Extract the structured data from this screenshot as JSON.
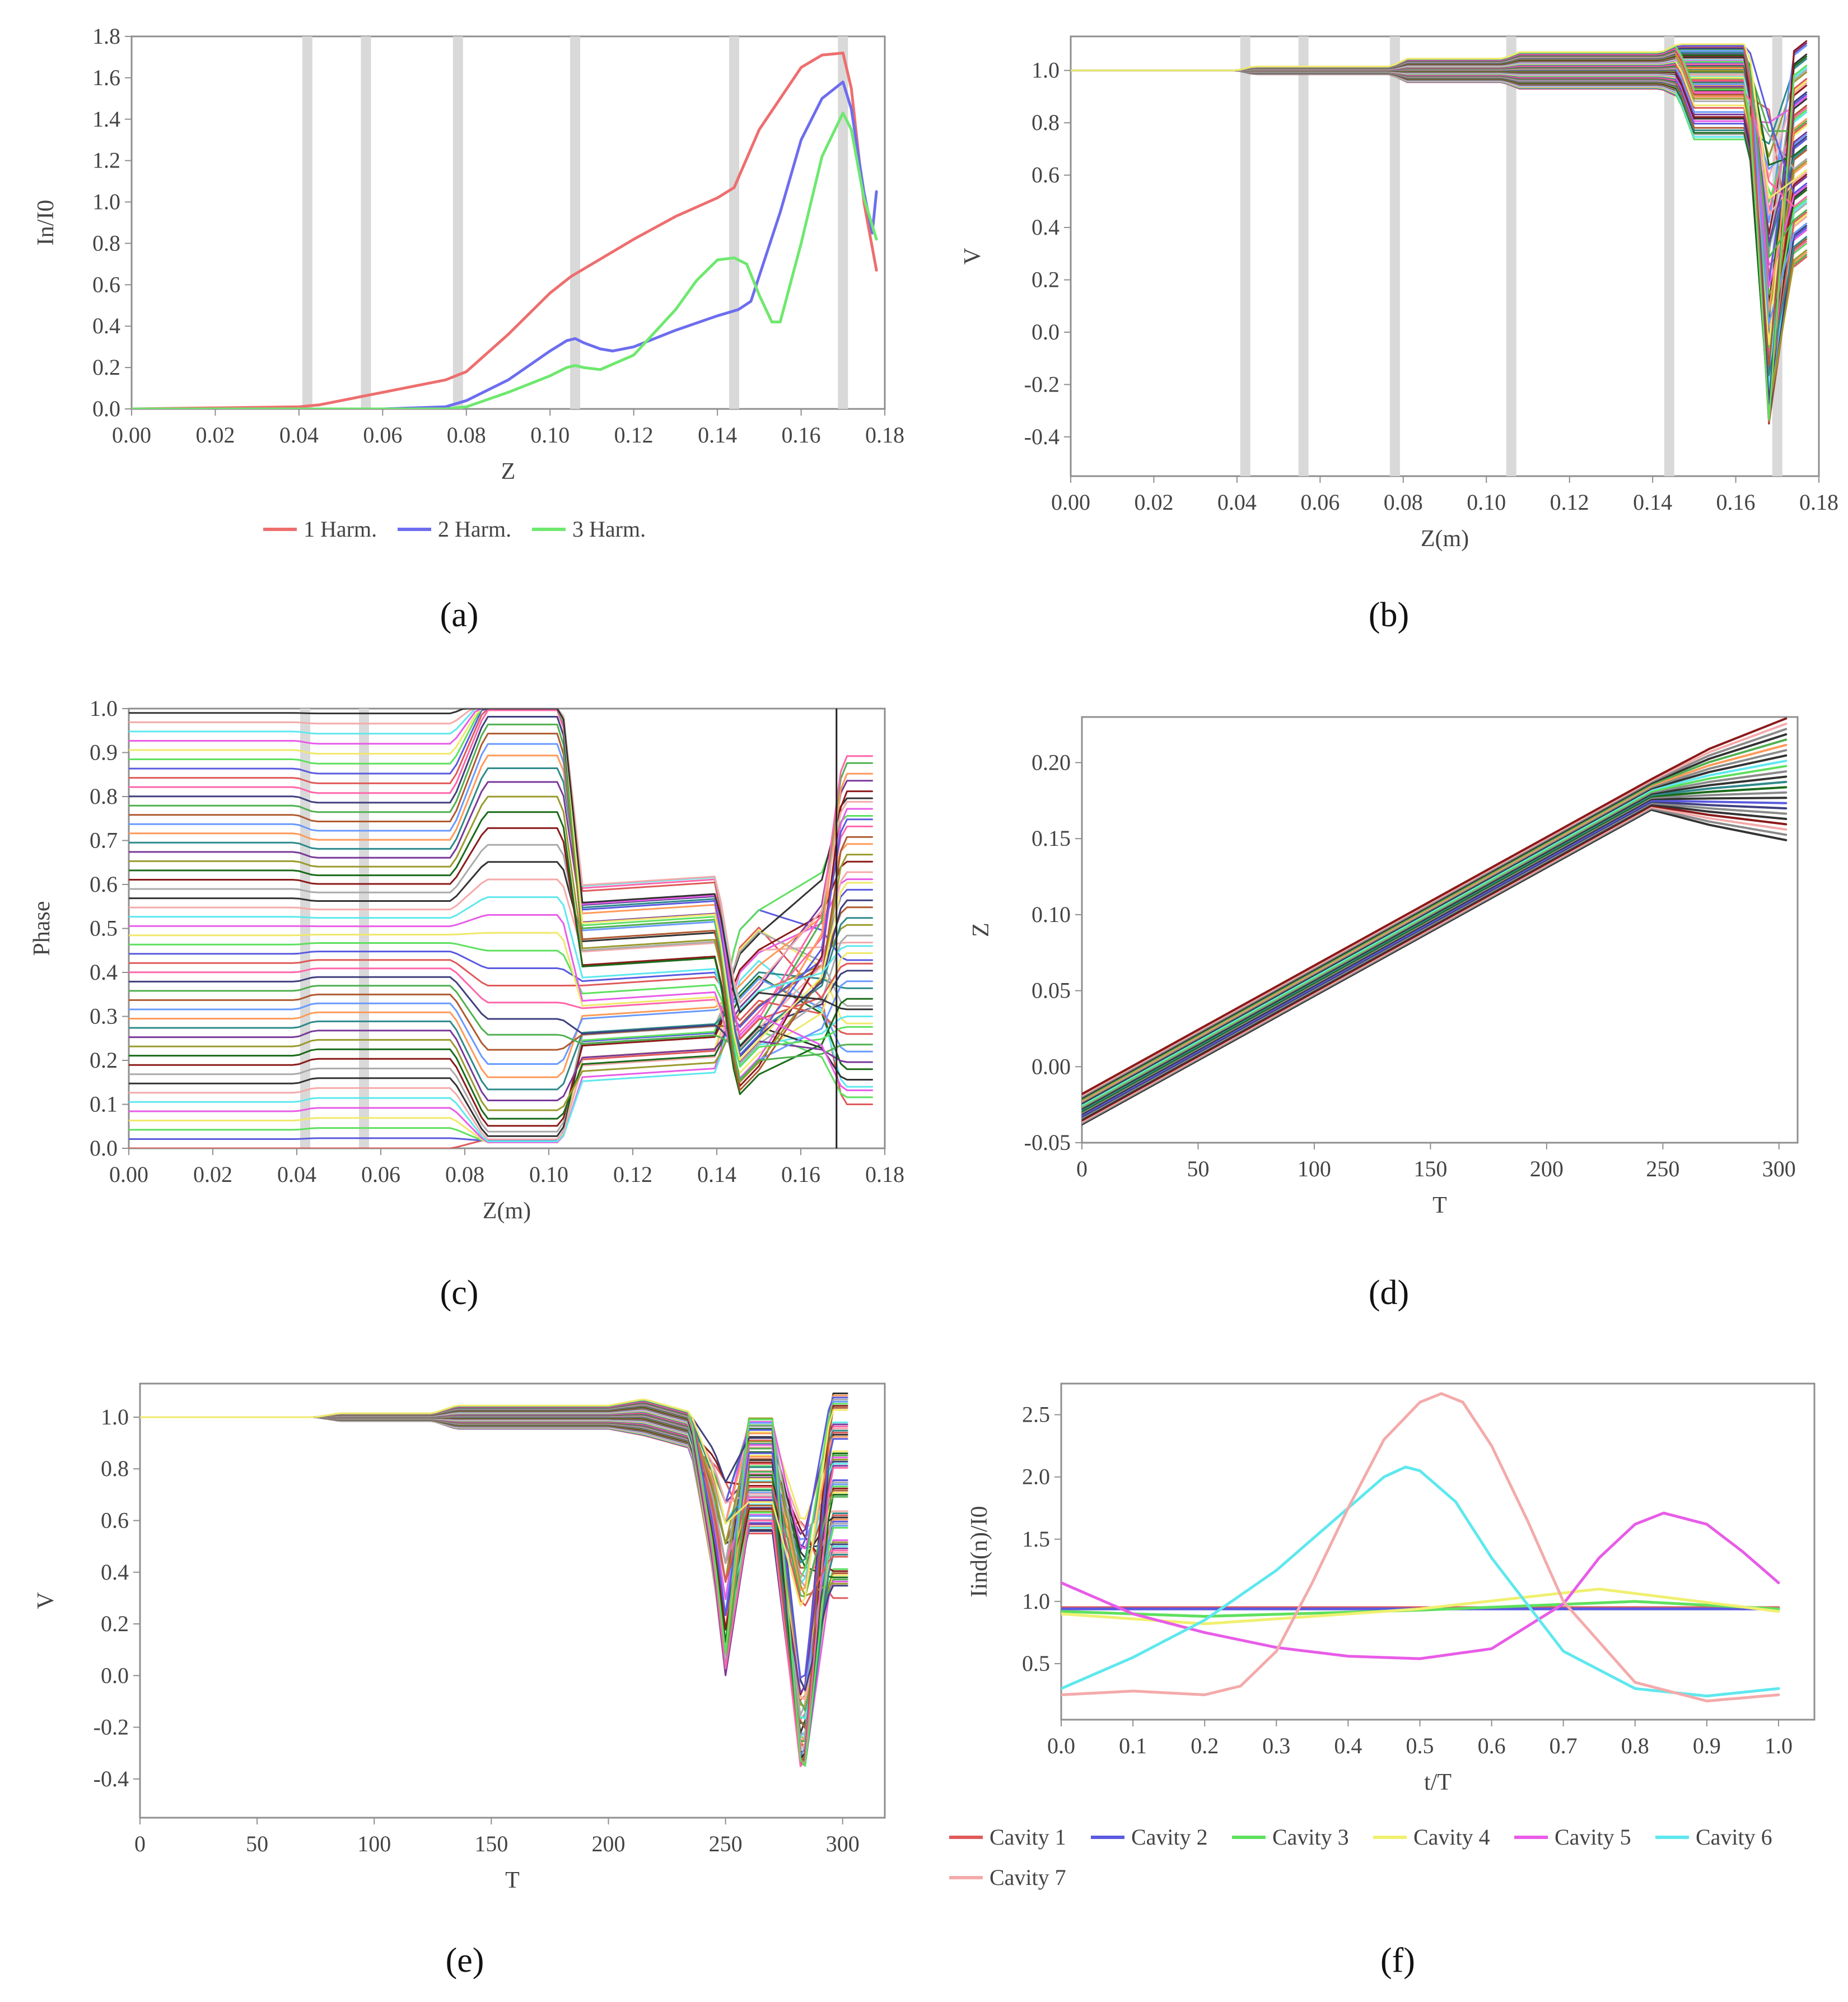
{
  "chart_data": [
    {
      "panel": "a",
      "type": "line",
      "xlabel": "Z",
      "ylabel": "In/I0",
      "xlim": [
        0,
        0.18
      ],
      "ylim": [
        0,
        1.8
      ],
      "xticks": [
        "0.00",
        "0.02",
        "0.04",
        "0.06",
        "0.08",
        "0.10",
        "0.12",
        "0.14",
        "0.16",
        "0.18"
      ],
      "yticks": [
        "0.0",
        "0.2",
        "0.4",
        "0.6",
        "0.8",
        "1.0",
        "1.2",
        "1.4",
        "1.6",
        "1.8"
      ],
      "cavity_positions": [
        0.042,
        0.056,
        0.078,
        0.106,
        0.144,
        0.17
      ],
      "legend_position": "bottom",
      "series": [
        {
          "name": "1 Harm.",
          "color": "#ee6e6e",
          "x": [
            0,
            0.04,
            0.045,
            0.06,
            0.075,
            0.08,
            0.09,
            0.1,
            0.105,
            0.12,
            0.13,
            0.14,
            0.144,
            0.15,
            0.16,
            0.165,
            0.17,
            0.172,
            0.175,
            0.178
          ],
          "y": [
            0,
            0.01,
            0.02,
            0.08,
            0.14,
            0.18,
            0.36,
            0.56,
            0.64,
            0.82,
            0.93,
            1.02,
            1.07,
            1.35,
            1.65,
            1.71,
            1.72,
            1.55,
            1.0,
            0.67
          ]
        },
        {
          "name": "2 Harm.",
          "color": "#6d6def",
          "x": [
            0,
            0.06,
            0.075,
            0.08,
            0.09,
            0.1,
            0.104,
            0.106,
            0.108,
            0.112,
            0.115,
            0.12,
            0.13,
            0.14,
            0.145,
            0.148,
            0.155,
            0.16,
            0.165,
            0.17,
            0.172,
            0.175,
            0.177,
            0.178
          ],
          "y": [
            0,
            0,
            0.01,
            0.04,
            0.14,
            0.28,
            0.33,
            0.34,
            0.32,
            0.29,
            0.28,
            0.3,
            0.38,
            0.45,
            0.48,
            0.52,
            0.95,
            1.3,
            1.5,
            1.58,
            1.45,
            1.05,
            0.85,
            1.05
          ]
        },
        {
          "name": "3 Harm.",
          "color": "#6ee86e",
          "x": [
            0,
            0.075,
            0.08,
            0.09,
            0.1,
            0.104,
            0.106,
            0.108,
            0.112,
            0.12,
            0.13,
            0.135,
            0.14,
            0.144,
            0.147,
            0.15,
            0.153,
            0.155,
            0.16,
            0.165,
            0.17,
            0.172,
            0.175,
            0.178
          ],
          "y": [
            0,
            0,
            0.01,
            0.08,
            0.16,
            0.2,
            0.21,
            0.2,
            0.19,
            0.26,
            0.48,
            0.62,
            0.72,
            0.73,
            0.7,
            0.55,
            0.42,
            0.42,
            0.8,
            1.22,
            1.43,
            1.35,
            1.02,
            0.82
          ]
        }
      ]
    },
    {
      "panel": "b",
      "type": "line",
      "xlabel": "Z(m)",
      "ylabel": "V",
      "xlim": [
        0,
        0.18
      ],
      "ylim": [
        -0.55,
        1.13
      ],
      "xticks": [
        "0.00",
        "0.02",
        "0.04",
        "0.06",
        "0.08",
        "0.10",
        "0.12",
        "0.14",
        "0.16",
        "0.18"
      ],
      "yticks": [
        "-0.4",
        "-0.2",
        "0.0",
        "0.2",
        "0.4",
        "0.6",
        "0.8",
        "1.0"
      ],
      "cavity_positions": [
        0.042,
        0.056,
        0.078,
        0.106,
        0.144,
        0.17
      ],
      "num_electron_curves": 64,
      "series_pattern": "electron velocities V(z), one curve per macroparticle"
    },
    {
      "panel": "c",
      "type": "line",
      "xlabel": "Z(m)",
      "ylabel": "Phase",
      "xlim": [
        0,
        0.18
      ],
      "ylim": [
        0,
        1.0
      ],
      "xticks": [
        "0.00",
        "0.02",
        "0.04",
        "0.06",
        "0.08",
        "0.10",
        "0.12",
        "0.14",
        "0.16",
        "0.18"
      ],
      "yticks": [
        "0.0",
        "0.1",
        "0.2",
        "0.3",
        "0.4",
        "0.5",
        "0.6",
        "0.7",
        "0.8",
        "0.9",
        "1.0"
      ],
      "cavity_positions": [
        0.042,
        0.056
      ],
      "num_electron_curves": 48,
      "series_pattern": "electron phase vs z"
    },
    {
      "panel": "d",
      "type": "line",
      "xlabel": "T",
      "ylabel": "Z",
      "xlim": [
        0,
        308
      ],
      "ylim": [
        -0.05,
        0.23
      ],
      "xticks": [
        "0",
        "50",
        "100",
        "150",
        "200",
        "250",
        "300"
      ],
      "yticks": [
        "-0.05",
        "0.00",
        "0.05",
        "0.10",
        "0.15",
        "0.20"
      ],
      "num_electron_curves": 24,
      "series_pattern": "electron trajectories z(t), start -0.038 to -0.018, reaching about 0.17 at T=245"
    },
    {
      "panel": "e",
      "type": "line",
      "xlabel": "T",
      "ylabel": "V",
      "xlim": [
        0,
        318
      ],
      "ylim": [
        -0.55,
        1.13
      ],
      "xticks": [
        "0",
        "50",
        "100",
        "150",
        "200",
        "250",
        "300"
      ],
      "yticks": [
        "-0.4",
        "-0.2",
        "0.0",
        "0.2",
        "0.4",
        "0.6",
        "0.8",
        "1.0"
      ],
      "num_electron_curves": 64,
      "series_pattern": "electron velocities V(t)"
    },
    {
      "panel": "f",
      "type": "line",
      "xlabel": "t/T",
      "ylabel": "Iind(n)/I0",
      "xlim": [
        0,
        1.05
      ],
      "ylim": [
        0.05,
        2.75
      ],
      "xticks": [
        "0.0",
        "0.1",
        "0.2",
        "0.3",
        "0.4",
        "0.5",
        "0.6",
        "0.7",
        "0.8",
        "0.9",
        "1.0"
      ],
      "yticks": [
        "0.5",
        "1.0",
        "1.5",
        "2.0",
        "2.5"
      ],
      "legend_position": "bottom",
      "series": [
        {
          "name": "Cavity 1",
          "color": "#e05a5a",
          "x": [
            0,
            1
          ],
          "y": [
            0.95,
            0.95
          ]
        },
        {
          "name": "Cavity 2",
          "color": "#5a5ae0",
          "x": [
            0,
            1
          ],
          "y": [
            0.94,
            0.94
          ]
        },
        {
          "name": "Cavity 3",
          "color": "#5ee05e",
          "x": [
            0,
            0.2,
            0.5,
            0.8,
            1.0
          ],
          "y": [
            0.92,
            0.88,
            0.93,
            1.0,
            0.94
          ]
        },
        {
          "name": "Cavity 4",
          "color": "#f0f070",
          "x": [
            0,
            0.2,
            0.5,
            0.75,
            1.0
          ],
          "y": [
            0.9,
            0.82,
            0.94,
            1.1,
            0.92
          ]
        },
        {
          "name": "Cavity 5",
          "color": "#e85ce8",
          "x": [
            0,
            0.1,
            0.2,
            0.3,
            0.4,
            0.5,
            0.6,
            0.7,
            0.75,
            0.8,
            0.84,
            0.9,
            0.95,
            1.0
          ],
          "y": [
            1.15,
            0.9,
            0.75,
            0.63,
            0.56,
            0.54,
            0.62,
            0.98,
            1.35,
            1.62,
            1.71,
            1.62,
            1.4,
            1.15
          ]
        },
        {
          "name": "Cavity 6",
          "color": "#5ee8ee",
          "x": [
            0,
            0.1,
            0.2,
            0.3,
            0.4,
            0.45,
            0.48,
            0.5,
            0.55,
            0.6,
            0.7,
            0.8,
            0.9,
            1.0
          ],
          "y": [
            0.3,
            0.55,
            0.85,
            1.25,
            1.75,
            2.0,
            2.08,
            2.05,
            1.8,
            1.35,
            0.6,
            0.3,
            0.24,
            0.3
          ]
        },
        {
          "name": "Cavity 7",
          "color": "#f4aaaa",
          "x": [
            0,
            0.1,
            0.2,
            0.25,
            0.3,
            0.35,
            0.4,
            0.45,
            0.5,
            0.53,
            0.56,
            0.6,
            0.65,
            0.7,
            0.8,
            0.9,
            1.0
          ],
          "y": [
            0.25,
            0.28,
            0.25,
            0.32,
            0.6,
            1.15,
            1.75,
            2.3,
            2.6,
            2.67,
            2.6,
            2.25,
            1.65,
            1.0,
            0.35,
            0.2,
            0.25
          ]
        }
      ]
    }
  ],
  "panel_labels": [
    "(a)",
    "(b)",
    "(c)",
    "(d)",
    "(e)",
    "(f)"
  ]
}
